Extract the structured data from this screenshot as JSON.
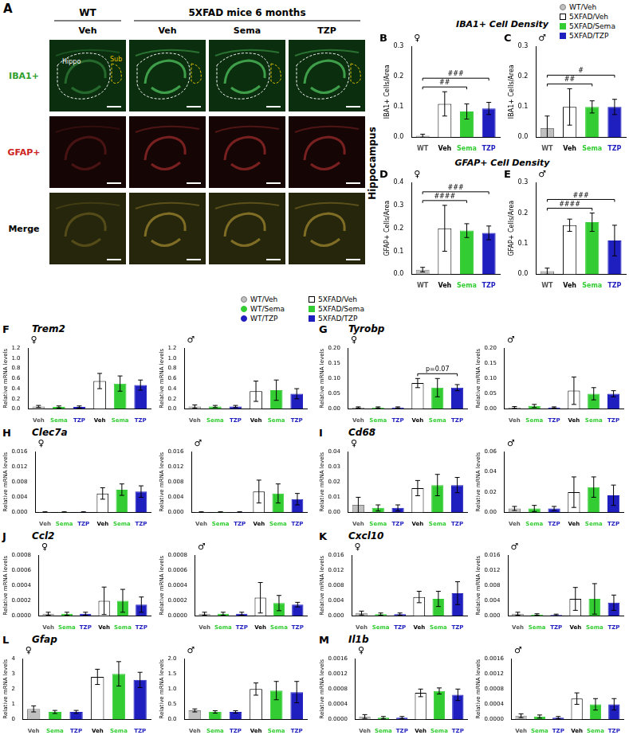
{
  "panel_a": {
    "label": "A",
    "group_headers": [
      "WT",
      "5XFAD mice 6 months"
    ],
    "columns": [
      "Veh",
      "Veh",
      "Sema",
      "TZP"
    ],
    "rows": [
      "IBA1+",
      "GFAP+",
      "Merge"
    ],
    "regions": [
      "Hippo",
      "Sub"
    ]
  },
  "section_titles": [
    "IBA1+ Cell Density",
    "GFAP+ Cell Density"
  ],
  "region_label": "Hippocampus",
  "legend_top": [
    {
      "name": "WT/Veh",
      "color": "#c0c0c0",
      "marker": "circle"
    },
    {
      "name": "5XFAD/Veh",
      "color": "#ffffff",
      "marker": "square"
    },
    {
      "name": "5XFAD/Sema",
      "color": "#33cc33",
      "marker": "square"
    },
    {
      "name": "5XFAD/TZP",
      "color": "#1f1fbf",
      "marker": "square"
    }
  ],
  "legend_mid": [
    {
      "name": "WT/Veh",
      "color": "#c0c0c0",
      "marker": "circle"
    },
    {
      "name": "WT/Sema",
      "color": "#33cc33",
      "marker": "circle"
    },
    {
      "name": "WT/TZP",
      "color": "#1f1fbf",
      "marker": "circle"
    },
    {
      "name": "5XFAD/Veh",
      "color": "#ffffff",
      "marker": "square"
    },
    {
      "name": "5XFAD/Sema",
      "color": "#33cc33",
      "marker": "square"
    },
    {
      "name": "5XFAD/TZP",
      "color": "#1f1fbf",
      "marker": "square"
    }
  ],
  "panels": [
    {
      "label": "B"
    },
    {
      "label": "C"
    },
    {
      "label": "D"
    },
    {
      "label": "E"
    },
    {
      "label": "F",
      "title": "Trem2"
    },
    {
      "label": "G",
      "title": "Tyrobp"
    },
    {
      "label": "H",
      "title": "Clec7a"
    },
    {
      "label": "I",
      "title": "Cd68"
    },
    {
      "label": "J",
      "title": "Ccl2"
    },
    {
      "label": "K",
      "title": "Cxcl10"
    },
    {
      "label": "L",
      "title": "Gfap"
    },
    {
      "label": "M",
      "title": "Il1b"
    }
  ],
  "chart_data": [
    {
      "type": "bar",
      "title": "♀",
      "y_label": "IBA1+ Cells/Area",
      "categories": [
        "WT",
        "Veh",
        "Sema",
        "TZP"
      ],
      "colors": [
        "#c0c0c0",
        "#ffffff",
        "#33cc33",
        "#1f1fbf"
      ],
      "values": [
        0.005,
        0.11,
        0.085,
        0.095
      ],
      "errors": [
        0.005,
        0.04,
        0.025,
        0.02
      ],
      "ylim": [
        0,
        0.3
      ],
      "yticks": [
        {
          "value": 0,
          "label": "0.0"
        },
        0.1,
        0.2,
        0.3
      ],
      "grid": false,
      "annotations": [
        {
          "text": "##",
          "from": 0,
          "to": 2
        },
        {
          "text": "###",
          "from": 0,
          "to": 3
        }
      ]
    },
    {
      "type": "bar",
      "title": "♂",
      "y_label": "IBA1+ Cells/Area",
      "categories": [
        "WT",
        "Veh",
        "Sema",
        "TZP"
      ],
      "colors": [
        "#c0c0c0",
        "#ffffff",
        "#33cc33",
        "#1f1fbf"
      ],
      "values": [
        0.03,
        0.1,
        0.1,
        0.1
      ],
      "errors": [
        0.04,
        0.06,
        0.02,
        0.025
      ],
      "ylim": [
        0,
        0.3
      ],
      "yticks": [
        {
          "value": 0,
          "label": "0.0"
        },
        0.1,
        0.2,
        0.3
      ],
      "grid": false,
      "annotations": [
        {
          "text": "##",
          "from": 0,
          "to": 2
        },
        {
          "text": "#",
          "from": 0,
          "to": 3
        }
      ]
    },
    {
      "type": "bar",
      "title": "♀",
      "y_label": "GFAP+ Cells/Area",
      "categories": [
        "WT",
        "Veh",
        "Sema",
        "TZP"
      ],
      "colors": [
        "#c0c0c0",
        "#ffffff",
        "#33cc33",
        "#1f1fbf"
      ],
      "values": [
        0.02,
        0.2,
        0.19,
        0.18
      ],
      "errors": [
        0.01,
        0.1,
        0.03,
        0.03
      ],
      "ylim": [
        0,
        0.4
      ],
      "yticks": [
        {
          "value": 0,
          "label": "0.0"
        },
        0.1,
        0.2,
        0.3,
        0.4
      ],
      "grid": false,
      "annotations": [
        {
          "text": "####",
          "from": 0,
          "to": 2
        },
        {
          "text": "###",
          "from": 0,
          "to": 3
        }
      ]
    },
    {
      "type": "bar",
      "title": "♂",
      "y_label": "GFAP+ Cells/Area",
      "categories": [
        "WT",
        "Veh",
        "Sema",
        "TZP"
      ],
      "colors": [
        "#c0c0c0",
        "#ffffff",
        "#33cc33",
        "#1f1fbf"
      ],
      "values": [
        0.01,
        0.16,
        0.17,
        0.11
      ],
      "errors": [
        0.01,
        0.02,
        0.03,
        0.05
      ],
      "ylim": [
        0,
        0.3
      ],
      "yticks": [
        {
          "value": 0,
          "label": "0.0"
        },
        0.1,
        0.2,
        0.3
      ],
      "grid": false,
      "annotations": [
        {
          "text": "####",
          "from": 0,
          "to": 2
        },
        {
          "text": "###",
          "from": 0,
          "to": 3
        }
      ]
    },
    {
      "type": "bar",
      "title": "♀",
      "y_label": "Relative mRNA levels",
      "categories": [
        "Veh",
        "Sema",
        "TZP",
        "Veh",
        "Sema",
        "TZP"
      ],
      "colors": [
        "#c0c0c0",
        "#33cc33",
        "#1f1fbf",
        "#ffffff",
        "#33cc33",
        "#1f1fbf"
      ],
      "values": [
        0.05,
        0.04,
        0.04,
        0.55,
        0.5,
        0.47
      ],
      "errors": [
        0.02,
        0.02,
        0.02,
        0.15,
        0.15,
        0.1
      ],
      "ylim": [
        0,
        1.2
      ],
      "yticks": [
        {
          "value": 0,
          "label": "0.0"
        },
        0.2,
        0.4,
        0.6,
        0.8,
        {
          "value": 1,
          "label": "1.0"
        },
        1.2
      ],
      "grid": false
    },
    {
      "type": "bar",
      "title": "♂",
      "y_label": "Relative mRNA levels",
      "categories": [
        "Veh",
        "Sema",
        "TZP",
        "Veh",
        "Sema",
        "TZP"
      ],
      "colors": [
        "#c0c0c0",
        "#33cc33",
        "#1f1fbf",
        "#ffffff",
        "#33cc33",
        "#1f1fbf"
      ],
      "values": [
        0.05,
        0.05,
        0.05,
        0.35,
        0.37,
        0.3
      ],
      "errors": [
        0.03,
        0.02,
        0.02,
        0.2,
        0.2,
        0.1
      ],
      "ylim": [
        0,
        1.2
      ],
      "yticks": [
        {
          "value": 0,
          "label": "0.0"
        },
        0.2,
        0.4,
        0.6,
        0.8,
        {
          "value": 1,
          "label": "1.0"
        },
        1.2
      ],
      "grid": false
    },
    {
      "type": "bar",
      "title": "♀",
      "y_label": "Relative mRNA levels",
      "categories": [
        "Veh",
        "Sema",
        "TZP",
        "Veh",
        "Sema",
        "TZP"
      ],
      "colors": [
        "#c0c0c0",
        "#33cc33",
        "#1f1fbf",
        "#ffffff",
        "#33cc33",
        "#1f1fbf"
      ],
      "values": [
        0.005,
        0.005,
        0.005,
        0.085,
        0.07,
        0.07
      ],
      "errors": [
        0.002,
        0.002,
        0.002,
        0.015,
        0.03,
        0.01
      ],
      "ylim": [
        0,
        0.2
      ],
      "yticks": [
        {
          "value": 0,
          "label": "0.00"
        },
        0.05,
        {
          "value": 0.1,
          "label": "0.10"
        },
        0.15,
        {
          "value": 0.2,
          "label": "0.20"
        }
      ],
      "grid": false,
      "annotations": [
        {
          "text": "p=0.07",
          "from": 3,
          "to": 5
        }
      ]
    },
    {
      "type": "bar",
      "title": "♂",
      "y_label": "Relative mRNA levels",
      "categories": [
        "Veh",
        "Sema",
        "TZP",
        "Veh",
        "Sema",
        "TZP"
      ],
      "colors": [
        "#c0c0c0",
        "#33cc33",
        "#1f1fbf",
        "#ffffff",
        "#33cc33",
        "#1f1fbf"
      ],
      "values": [
        0.005,
        0.01,
        0.005,
        0.06,
        0.05,
        0.05
      ],
      "errors": [
        0.003,
        0.005,
        0.002,
        0.045,
        0.02,
        0.01
      ],
      "ylim": [
        0,
        0.2
      ],
      "yticks": [
        {
          "value": 0,
          "label": "0.00"
        },
        0.05,
        {
          "value": 0.1,
          "label": "0.10"
        },
        0.15,
        {
          "value": 0.2,
          "label": "0.20"
        }
      ],
      "grid": false
    },
    {
      "type": "bar",
      "title": "♀",
      "y_label": "Relative mRNA levels",
      "categories": [
        "Veh",
        "Sema",
        "TZP",
        "Veh",
        "Sema",
        "TZP"
      ],
      "colors": [
        "#c0c0c0",
        "#33cc33",
        "#1f1fbf",
        "#ffffff",
        "#33cc33",
        "#1f1fbf"
      ],
      "values": [
        0.0001,
        0.0001,
        0.0001,
        0.005,
        0.006,
        0.0055
      ],
      "errors": [
        0.0001,
        0.0001,
        0.0001,
        0.0015,
        0.0015,
        0.0015
      ],
      "ylim": [
        0,
        0.016
      ],
      "yticks": [
        {
          "value": 0,
          "label": "0.000"
        },
        0.004,
        0.008,
        0.012,
        0.016
      ],
      "grid": false
    },
    {
      "type": "bar",
      "title": "♂",
      "y_label": "Relative mRNA levels",
      "categories": [
        "Veh",
        "Sema",
        "TZP",
        "Veh",
        "Sema",
        "TZP"
      ],
      "colors": [
        "#c0c0c0",
        "#33cc33",
        "#1f1fbf",
        "#ffffff",
        "#33cc33",
        "#1f1fbf"
      ],
      "values": [
        0.0001,
        0.0001,
        0.0001,
        0.0055,
        0.005,
        0.0035
      ],
      "errors": [
        0.0001,
        0.0001,
        0.0001,
        0.003,
        0.0025,
        0.0015
      ],
      "ylim": [
        0,
        0.016
      ],
      "yticks": [
        {
          "value": 0,
          "label": "0.000"
        },
        0.004,
        0.008,
        0.012,
        0.016
      ],
      "grid": false
    },
    {
      "type": "bar",
      "title": "♀",
      "y_label": "Relative mRNA levels",
      "categories": [
        "Veh",
        "Sema",
        "TZP",
        "Veh",
        "Sema",
        "TZP"
      ],
      "colors": [
        "#c0c0c0",
        "#33cc33",
        "#1f1fbf",
        "#ffffff",
        "#33cc33",
        "#1f1fbf"
      ],
      "values": [
        0.005,
        0.003,
        0.003,
        0.016,
        0.018,
        0.018
      ],
      "errors": [
        0.005,
        0.002,
        0.002,
        0.005,
        0.007,
        0.005
      ],
      "ylim": [
        0,
        0.04
      ],
      "yticks": [
        {
          "value": 0,
          "label": "0.00"
        },
        0.01,
        0.02,
        0.03,
        0.04
      ],
      "grid": false
    },
    {
      "type": "bar",
      "title": "♂",
      "y_label": "Relative mRNA levels",
      "categories": [
        "Veh",
        "Sema",
        "TZP",
        "Veh",
        "Sema",
        "TZP"
      ],
      "colors": [
        "#c0c0c0",
        "#33cc33",
        "#1f1fbf",
        "#ffffff",
        "#33cc33",
        "#1f1fbf"
      ],
      "values": [
        0.004,
        0.004,
        0.004,
        0.02,
        0.025,
        0.017
      ],
      "errors": [
        0.002,
        0.003,
        0.002,
        0.015,
        0.01,
        0.01
      ],
      "ylim": [
        0,
        0.06
      ],
      "yticks": [
        {
          "value": 0,
          "label": "0.00"
        },
        0.02,
        0.04,
        0.06
      ],
      "grid": false
    },
    {
      "type": "bar",
      "title": "♀",
      "y_label": "Relative mRNA levels",
      "categories": [
        "Veh",
        "Sema",
        "TZP",
        "Veh",
        "Sema",
        "TZP"
      ],
      "colors": [
        "#c0c0c0",
        "#33cc33",
        "#1f1fbf",
        "#ffffff",
        "#33cc33",
        "#1f1fbf"
      ],
      "values": [
        3e-05,
        3e-05,
        3e-05,
        0.0002,
        0.0002,
        0.00015
      ],
      "errors": [
        2e-05,
        2e-05,
        2e-05,
        0.00018,
        0.00015,
        0.0001
      ],
      "ylim": [
        0,
        0.0008
      ],
      "yticks": [
        {
          "value": 0,
          "label": "0.0000"
        },
        0.0002,
        0.0004,
        0.0006,
        0.0008
      ],
      "grid": false
    },
    {
      "type": "bar",
      "title": "♂",
      "y_label": "Relative mRNA levels",
      "categories": [
        "Veh",
        "Sema",
        "TZP",
        "Veh",
        "Sema",
        "TZP"
      ],
      "colors": [
        "#c0c0c0",
        "#33cc33",
        "#1f1fbf",
        "#ffffff",
        "#33cc33",
        "#1f1fbf"
      ],
      "values": [
        3e-05,
        3e-05,
        3e-05,
        0.00024,
        0.00017,
        0.00015
      ],
      "errors": [
        2e-05,
        2e-05,
        2e-05,
        0.0002,
        0.0001,
        3e-05
      ],
      "ylim": [
        0,
        0.0008
      ],
      "yticks": [
        {
          "value": 0,
          "label": "0.0000"
        },
        0.0002,
        0.0004,
        0.0006,
        0.0008
      ],
      "grid": false
    },
    {
      "type": "bar",
      "title": "♀",
      "y_label": "Relative mRNA levels",
      "categories": [
        "Veh",
        "Sema",
        "TZP",
        "Veh",
        "Sema",
        "TZP"
      ],
      "colors": [
        "#c0c0c0",
        "#33cc33",
        "#1f1fbf",
        "#ffffff",
        "#33cc33",
        "#1f1fbf"
      ],
      "values": [
        0.0008,
        0.0005,
        0.0005,
        0.005,
        0.0045,
        0.006
      ],
      "errors": [
        0.0005,
        0.0003,
        0.0003,
        0.0015,
        0.002,
        0.003
      ],
      "ylim": [
        0,
        0.016
      ],
      "yticks": [
        {
          "value": 0,
          "label": "0.000"
        },
        0.004,
        0.008,
        0.012,
        0.016
      ],
      "grid": false
    },
    {
      "type": "bar",
      "title": "♂",
      "y_label": "Relative mRNA levels",
      "categories": [
        "Veh",
        "Sema",
        "TZP",
        "Veh",
        "Sema",
        "TZP"
      ],
      "colors": [
        "#c0c0c0",
        "#33cc33",
        "#1f1fbf",
        "#ffffff",
        "#33cc33",
        "#1f1fbf"
      ],
      "values": [
        0.0006,
        0.0004,
        0.0003,
        0.0045,
        0.0045,
        0.0035
      ],
      "errors": [
        0.0004,
        0.0002,
        0.0002,
        0.003,
        0.004,
        0.002
      ],
      "ylim": [
        0,
        0.016
      ],
      "yticks": [
        {
          "value": 0,
          "label": "0.000"
        },
        0.004,
        0.008,
        0.012,
        0.016
      ],
      "grid": false
    },
    {
      "type": "bar",
      "title": "♀",
      "y_label": "Relative mRNA levels",
      "categories": [
        "Veh",
        "Sema",
        "TZP",
        "Veh",
        "Sema",
        "TZP"
      ],
      "colors": [
        "#c0c0c0",
        "#33cc33",
        "#1f1fbf",
        "#ffffff",
        "#33cc33",
        "#1f1fbf"
      ],
      "values": [
        0.7,
        0.5,
        0.5,
        2.8,
        3.0,
        2.6
      ],
      "errors": [
        0.2,
        0.1,
        0.1,
        0.5,
        0.8,
        0.5
      ],
      "ylim": [
        0,
        4
      ],
      "yticks": [
        0,
        1,
        2,
        3,
        4
      ],
      "grid": false
    },
    {
      "type": "bar",
      "title": "♂",
      "y_label": "Relative mRNA levels",
      "categories": [
        "Veh",
        "Sema",
        "TZP",
        "Veh",
        "Sema",
        "TZP"
      ],
      "colors": [
        "#c0c0c0",
        "#33cc33",
        "#1f1fbf",
        "#ffffff",
        "#33cc33",
        "#1f1fbf"
      ],
      "values": [
        0.3,
        0.25,
        0.25,
        1.0,
        0.95,
        0.9
      ],
      "errors": [
        0.05,
        0.04,
        0.04,
        0.2,
        0.3,
        0.35
      ],
      "ylim": [
        0,
        2
      ],
      "yticks": [
        {
          "value": 0,
          "label": "0.0"
        },
        0.5,
        {
          "value": 1,
          "label": "1.0"
        },
        1.5,
        {
          "value": 2,
          "label": "2.0"
        }
      ],
      "grid": false
    },
    {
      "type": "bar",
      "title": "♀",
      "y_label": "Relative mRNA levels",
      "categories": [
        "Veh",
        "Sema",
        "TZP",
        "Veh",
        "Sema",
        "TZP"
      ],
      "colors": [
        "#c0c0c0",
        "#33cc33",
        "#1f1fbf",
        "#ffffff",
        "#33cc33",
        "#1f1fbf"
      ],
      "values": [
        8e-05,
        5e-05,
        5e-05,
        0.0007,
        0.00075,
        0.00065
      ],
      "errors": [
        5e-05,
        3e-05,
        3e-05,
        0.0001,
        8e-05,
        0.00015
      ],
      "ylim": [
        0,
        0.0016
      ],
      "yticks": [
        {
          "value": 0,
          "label": "0.0000"
        },
        0.0004,
        0.0008,
        0.0012,
        0.0016
      ],
      "grid": false
    },
    {
      "type": "bar",
      "title": "♂",
      "y_label": "Relative mRNA levels",
      "categories": [
        "Veh",
        "Sema",
        "TZP",
        "Veh",
        "Sema",
        "TZP"
      ],
      "colors": [
        "#c0c0c0",
        "#33cc33",
        "#1f1fbf",
        "#ffffff",
        "#33cc33",
        "#1f1fbf"
      ],
      "values": [
        0.0001,
        8e-05,
        5e-05,
        0.00055,
        0.0004,
        0.0004
      ],
      "errors": [
        5e-05,
        4e-05,
        3e-05,
        0.00015,
        0.00015,
        0.00015
      ],
      "ylim": [
        0,
        0.0016
      ],
      "yticks": [
        {
          "value": 0,
          "label": "0.0000"
        },
        0.0004,
        0.0008,
        0.0012,
        0.0016
      ],
      "grid": false
    }
  ]
}
